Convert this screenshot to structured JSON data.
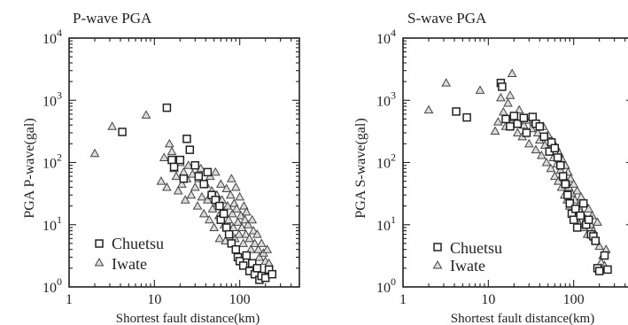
{
  "chart_data": [
    {
      "type": "scatter",
      "title": "P-wave PGA",
      "xlabel": "Shortest fault distance(km)",
      "ylabel": "PGA P-wave(gal)",
      "xscale": "log",
      "yscale": "log",
      "xlim": [
        1,
        500
      ],
      "ylim": [
        1,
        10000
      ],
      "x_ticks": [
        {
          "base": "1",
          "exp": ""
        },
        {
          "base": "10",
          "exp": ""
        },
        {
          "base": "100",
          "exp": ""
        }
      ],
      "y_ticks": [
        {
          "base": "10",
          "exp": "0"
        },
        {
          "base": "10",
          "exp": "1"
        },
        {
          "base": "10",
          "exp": "2"
        },
        {
          "base": "10",
          "exp": "3"
        },
        {
          "base": "10",
          "exp": "4"
        }
      ],
      "legend_position": "bottom-left",
      "series": [
        {
          "name": "Chuetsu",
          "marker": "square",
          "points": [
            [
              4.2,
              310
            ],
            [
              14,
              760
            ],
            [
              16,
              110
            ],
            [
              17,
              85
            ],
            [
              20,
              110
            ],
            [
              22,
              55
            ],
            [
              24,
              240
            ],
            [
              26,
              160
            ],
            [
              30,
              90
            ],
            [
              33,
              60
            ],
            [
              38,
              45
            ],
            [
              42,
              70
            ],
            [
              47,
              30
            ],
            [
              52,
              25
            ],
            [
              58,
              20
            ],
            [
              60,
              12
            ],
            [
              65,
              15
            ],
            [
              70,
              9
            ],
            [
              75,
              7
            ],
            [
              80,
              5
            ],
            [
              90,
              4
            ],
            [
              95,
              3
            ],
            [
              100,
              2.6
            ],
            [
              110,
              2.2
            ],
            [
              120,
              3.2
            ],
            [
              130,
              1.8
            ],
            [
              140,
              2.4
            ],
            [
              150,
              1.6
            ],
            [
              160,
              2.0
            ],
            [
              170,
              1.3
            ],
            [
              180,
              1.5
            ],
            [
              200,
              1.4
            ],
            [
              220,
              1.9
            ],
            [
              240,
              1.6
            ]
          ]
        },
        {
          "name": "Iwate",
          "marker": "triangle",
          "points": [
            [
              2.0,
              140
            ],
            [
              3.2,
              380
            ],
            [
              8,
              580
            ],
            [
              12,
              50
            ],
            [
              13,
              120
            ],
            [
              14,
              40
            ],
            [
              15,
              200
            ],
            [
              16,
              150
            ],
            [
              17,
              80
            ],
            [
              18,
              60
            ],
            [
              19,
              35
            ],
            [
              20,
              100
            ],
            [
              21,
              45
            ],
            [
              22,
              70
            ],
            [
              23,
              25
            ],
            [
              24,
              55
            ],
            [
              25,
              90
            ],
            [
              27,
              30
            ],
            [
              28,
              65
            ],
            [
              30,
              40
            ],
            [
              32,
              20
            ],
            [
              33,
              55
            ],
            [
              35,
              80
            ],
            [
              36,
              28
            ],
            [
              38,
              15
            ],
            [
              40,
              45
            ],
            [
              42,
              25
            ],
            [
              44,
              12
            ],
            [
              45,
              60
            ],
            [
              47,
              35
            ],
            [
              48,
              18
            ],
            [
              50,
              9
            ],
            [
              52,
              70
            ],
            [
              54,
              30
            ],
            [
              55,
              22
            ],
            [
              57,
              14
            ],
            [
              58,
              6
            ],
            [
              60,
              45
            ],
            [
              62,
              25
            ],
            [
              64,
              16
            ],
            [
              66,
              10
            ],
            [
              68,
              5.5
            ],
            [
              70,
              38
            ],
            [
              72,
              20
            ],
            [
              74,
              12
            ],
            [
              76,
              8
            ],
            [
              78,
              30
            ],
            [
              80,
              55
            ],
            [
              82,
              15
            ],
            [
              84,
              9
            ],
            [
              86,
              22
            ],
            [
              88,
              6
            ],
            [
              90,
              40
            ],
            [
              92,
              18
            ],
            [
              95,
              11
            ],
            [
              98,
              7
            ],
            [
              100,
              28
            ],
            [
              103,
              14
            ],
            [
              106,
              9
            ],
            [
              110,
              5
            ],
            [
              112,
              20
            ],
            [
              115,
              12
            ],
            [
              118,
              7
            ],
            [
              120,
              16
            ],
            [
              125,
              10
            ],
            [
              130,
              6
            ],
            [
              135,
              4
            ],
            [
              140,
              12
            ],
            [
              145,
              8
            ],
            [
              150,
              5
            ],
            [
              160,
              7
            ],
            [
              165,
              4
            ],
            [
              170,
              3
            ],
            [
              180,
              5
            ],
            [
              190,
              3.5
            ],
            [
              200,
              2.6
            ],
            [
              210,
              4
            ],
            [
              220,
              2.4
            ]
          ]
        }
      ]
    },
    {
      "type": "scatter",
      "title": "S-wave PGA",
      "xlabel": "Shortest fault distance(km)",
      "ylabel": "PGA S-wave(gal)",
      "xscale": "log",
      "yscale": "log",
      "xlim": [
        1,
        500
      ],
      "ylim": [
        1,
        10000
      ],
      "x_ticks": [
        {
          "base": "1",
          "exp": ""
        },
        {
          "base": "10",
          "exp": ""
        },
        {
          "base": "100",
          "exp": ""
        }
      ],
      "y_ticks": [
        {
          "base": "10",
          "exp": "0"
        },
        {
          "base": "10",
          "exp": "1"
        },
        {
          "base": "10",
          "exp": "2"
        },
        {
          "base": "10",
          "exp": "3"
        },
        {
          "base": "10",
          "exp": "4"
        }
      ],
      "legend_position": "bottom-left",
      "series": [
        {
          "name": "Chuetsu",
          "marker": "square",
          "points": [
            [
              4.2,
              660
            ],
            [
              5.6,
              530
            ],
            [
              14,
              1900
            ],
            [
              14.5,
              1650
            ],
            [
              16,
              500
            ],
            [
              18,
              380
            ],
            [
              20,
              560
            ],
            [
              22,
              420
            ],
            [
              26,
              520
            ],
            [
              28,
              300
            ],
            [
              33,
              540
            ],
            [
              36,
              420
            ],
            [
              40,
              380
            ],
            [
              45,
              260
            ],
            [
              52,
              150
            ],
            [
              55,
              210
            ],
            [
              60,
              170
            ],
            [
              65,
              120
            ],
            [
              70,
              90
            ],
            [
              75,
              60
            ],
            [
              80,
              45
            ],
            [
              85,
              30
            ],
            [
              90,
              22
            ],
            [
              95,
              15
            ],
            [
              100,
              12
            ],
            [
              105,
              18
            ],
            [
              110,
              9
            ],
            [
              120,
              14
            ],
            [
              130,
              22
            ],
            [
              140,
              10
            ],
            [
              150,
              12
            ],
            [
              160,
              7
            ],
            [
              170,
              6.5
            ],
            [
              180,
              5.5
            ],
            [
              190,
              2.0
            ],
            [
              200,
              1.8
            ],
            [
              230,
              3.2
            ],
            [
              250,
              1.9
            ]
          ]
        },
        {
          "name": "Iwate",
          "marker": "triangle",
          "points": [
            [
              2.0,
              700
            ],
            [
              3.2,
              1900
            ],
            [
              8,
              1450
            ],
            [
              12,
              320
            ],
            [
              13,
              450
            ],
            [
              14,
              1100
            ],
            [
              15,
              650
            ],
            [
              16,
              380
            ],
            [
              17,
              900
            ],
            [
              18,
              1200
            ],
            [
              19,
              2700
            ],
            [
              20,
              520
            ],
            [
              22,
              300
            ],
            [
              23,
              700
            ],
            [
              25,
              260
            ],
            [
              26,
              400
            ],
            [
              28,
              480
            ],
            [
              30,
              200
            ],
            [
              32,
              350
            ],
            [
              34,
              450
            ],
            [
              36,
              160
            ],
            [
              38,
              300
            ],
            [
              40,
              230
            ],
            [
              42,
              130
            ],
            [
              44,
              380
            ],
            [
              46,
              190
            ],
            [
              48,
              100
            ],
            [
              50,
              280
            ],
            [
              52,
              150
            ],
            [
              54,
              80
            ],
            [
              56,
              220
            ],
            [
              58,
              120
            ],
            [
              60,
              60
            ],
            [
              62,
              180
            ],
            [
              64,
              95
            ],
            [
              66,
              50
            ],
            [
              68,
              140
            ],
            [
              70,
              75
            ],
            [
              72,
              40
            ],
            [
              74,
              110
            ],
            [
              76,
              60
            ],
            [
              78,
              30
            ],
            [
              80,
              90
            ],
            [
              82,
              50
            ],
            [
              84,
              25
            ],
            [
              86,
              70
            ],
            [
              88,
              40
            ],
            [
              90,
              20
            ],
            [
              92,
              55
            ],
            [
              95,
              32
            ],
            [
              98,
              16
            ],
            [
              100,
              45
            ],
            [
              103,
              25
            ],
            [
              106,
              13
            ],
            [
              110,
              35
            ],
            [
              114,
              20
            ],
            [
              118,
              10
            ],
            [
              122,
              28
            ],
            [
              126,
              15
            ],
            [
              130,
              9
            ],
            [
              135,
              22
            ],
            [
              140,
              12
            ],
            [
              145,
              7
            ],
            [
              150,
              18
            ],
            [
              158,
              10
            ],
            [
              165,
              14
            ],
            [
              170,
              8
            ],
            [
              180,
              6
            ],
            [
              190,
              11
            ],
            [
              200,
              4.5
            ],
            [
              210,
              2.5
            ],
            [
              220,
              3.2
            ],
            [
              230,
              2.2
            ],
            [
              240,
              4
            ]
          ]
        }
      ]
    }
  ]
}
